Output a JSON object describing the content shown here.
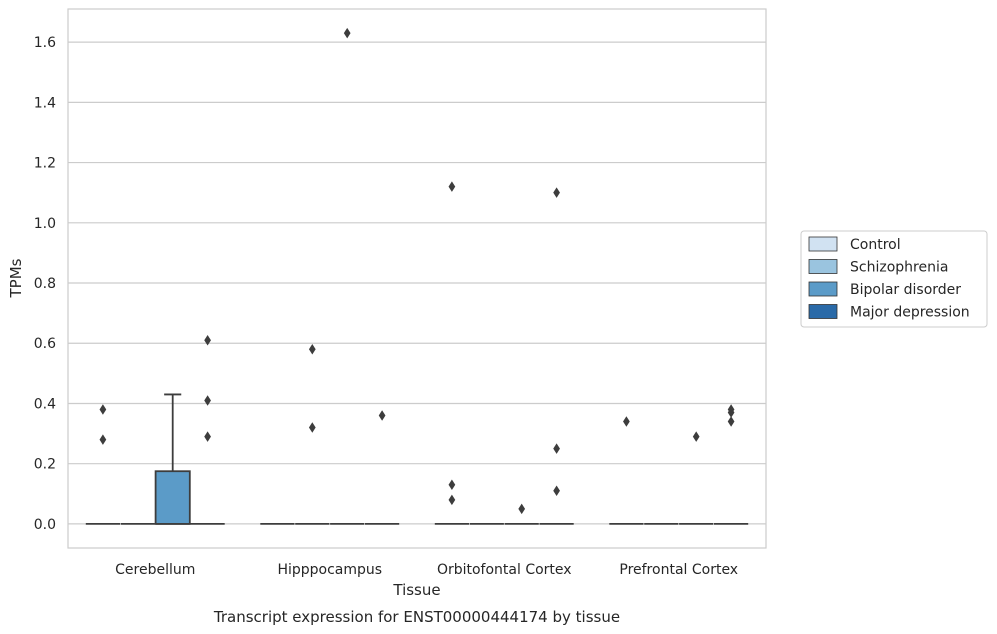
{
  "chart_data": {
    "type": "boxplot",
    "caption": "Transcript expression for ENST00000444174 by tissue",
    "xlabel": "Tissue",
    "ylabel": "TPMs",
    "ylim": [
      -0.08,
      1.71
    ],
    "yticks": [
      0.0,
      0.2,
      0.4,
      0.6,
      0.8,
      1.0,
      1.2,
      1.4,
      1.6
    ],
    "ytick_labels": [
      "0.0",
      "0.2",
      "0.4",
      "0.6",
      "0.8",
      "1.0",
      "1.2",
      "1.4",
      "1.6"
    ],
    "grid": true,
    "legend_position": "right",
    "categories": [
      "Cerebellum",
      "Hipppocampus",
      "Orbitofontal Cortex",
      "Prefrontal Cortex"
    ],
    "series": [
      {
        "name": "Control",
        "color": "#d1e2f2",
        "boxes": [
          {
            "q1": 0,
            "median": 0,
            "q3": 0,
            "whisker_low": 0,
            "whisker_high": 0,
            "outliers": [
              0.28,
              0.38
            ]
          },
          {
            "q1": 0,
            "median": 0,
            "q3": 0,
            "whisker_low": 0,
            "whisker_high": 0,
            "outliers": []
          },
          {
            "q1": 0,
            "median": 0,
            "q3": 0,
            "whisker_low": 0,
            "whisker_high": 0,
            "outliers": [
              0.08,
              0.13,
              1.12
            ]
          },
          {
            "q1": 0,
            "median": 0,
            "q3": 0,
            "whisker_low": 0,
            "whisker_high": 0,
            "outliers": [
              0.34
            ]
          }
        ]
      },
      {
        "name": "Schizophrenia",
        "color": "#9ac4df",
        "boxes": [
          {
            "q1": 0,
            "median": 0,
            "q3": 0,
            "whisker_low": 0,
            "whisker_high": 0,
            "outliers": []
          },
          {
            "q1": 0,
            "median": 0,
            "q3": 0,
            "whisker_low": 0,
            "whisker_high": 0,
            "outliers": [
              0.32,
              0.58
            ]
          },
          {
            "q1": 0,
            "median": 0,
            "q3": 0,
            "whisker_low": 0,
            "whisker_high": 0,
            "outliers": []
          },
          {
            "q1": 0,
            "median": 0,
            "q3": 0,
            "whisker_low": 0,
            "whisker_high": 0,
            "outliers": []
          }
        ]
      },
      {
        "name": "Bipolar disorder",
        "color": "#5b9bc8",
        "boxes": [
          {
            "q1": 0,
            "median": 0,
            "q3": 0.175,
            "whisker_low": 0,
            "whisker_high": 0.43,
            "outliers": []
          },
          {
            "q1": 0,
            "median": 0,
            "q3": 0,
            "whisker_low": 0,
            "whisker_high": 0,
            "outliers": [
              1.63
            ]
          },
          {
            "q1": 0,
            "median": 0,
            "q3": 0,
            "whisker_low": 0,
            "whisker_high": 0,
            "outliers": [
              0.05
            ]
          },
          {
            "q1": 0,
            "median": 0,
            "q3": 0,
            "whisker_low": 0,
            "whisker_high": 0,
            "outliers": [
              0.29
            ]
          }
        ]
      },
      {
        "name": "Major depression",
        "color": "#2a6aa8",
        "boxes": [
          {
            "q1": 0,
            "median": 0,
            "q3": 0,
            "whisker_low": 0,
            "whisker_high": 0,
            "outliers": [
              0.29,
              0.41,
              0.61
            ]
          },
          {
            "q1": 0,
            "median": 0,
            "q3": 0,
            "whisker_low": 0,
            "whisker_high": 0,
            "outliers": [
              0.36
            ]
          },
          {
            "q1": 0,
            "median": 0,
            "q3": 0,
            "whisker_low": 0,
            "whisker_high": 0,
            "outliers": [
              0.11,
              0.25,
              1.1
            ]
          },
          {
            "q1": 0,
            "median": 0,
            "q3": 0,
            "whisker_low": 0,
            "whisker_high": 0,
            "outliers": [
              0.34,
              0.37,
              0.38
            ]
          }
        ]
      }
    ],
    "colors": {
      "grid": "#cccccc",
      "frame": "#cccccc",
      "box_edge": "#3d3d3d",
      "outlier": "#3d3d3d"
    }
  }
}
